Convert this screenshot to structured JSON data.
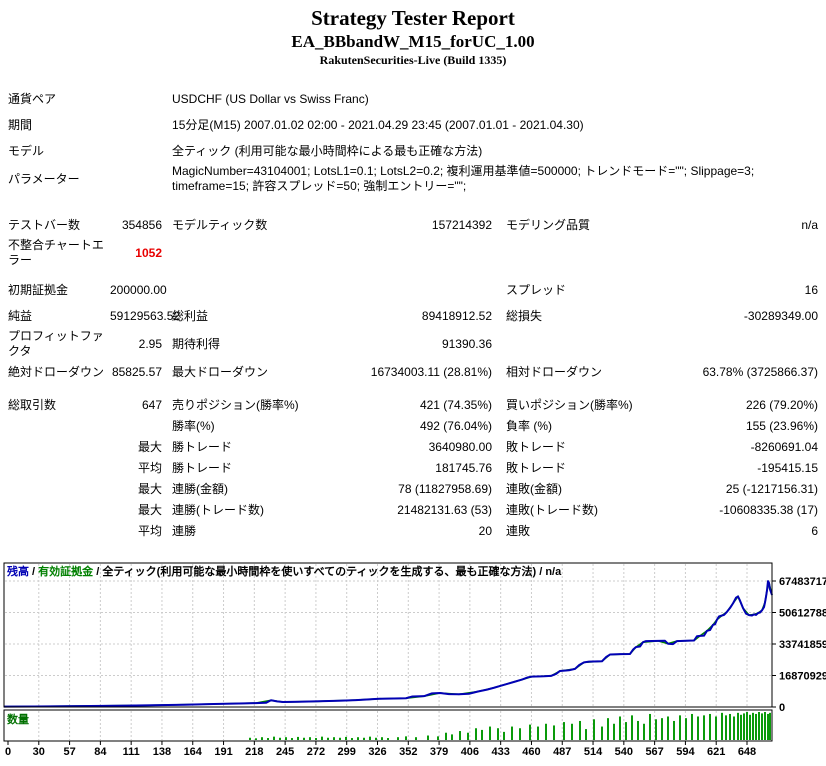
{
  "header": {
    "title": "Strategy Tester Report",
    "ea_name": "EA_BBbandW_M15_forUC_1.00",
    "broker": "RakutenSecurities-Live (Build 1335)"
  },
  "colors": {
    "balance": "#0101b4",
    "equity": "#008000",
    "bars": "#0a9a0a",
    "lots_label": "#007000",
    "grid": "#cccccc",
    "border": "#000000",
    "error": "#e80000"
  },
  "table": {
    "info_rows": [
      {
        "label": "通貨ペア",
        "value": "USDCHF (US Dollar vs Swiss Franc)"
      },
      {
        "label": "期間",
        "value": "15分足(M15) 2007.01.02 02:00 - 2021.04.29 23:45 (2007.01.01 - 2021.04.30)"
      },
      {
        "label": "モデル",
        "value": "全ティック (利用可能な最小時間枠による最も正確な方法)"
      },
      {
        "label": "パラメーター",
        "value": "MagicNumber=43104001; LotsL1=0.1; LotsL2=0.2; 複利運用基準値=500000; トレンドモード=\"\"; Slippage=3; timeframe=15; 許容スプレッド=50; 強制エントリー=\"\";"
      }
    ],
    "bars_rows": [
      {
        "l1": "テストバー数",
        "v1": "354856",
        "l2": "モデルティック数",
        "v2": "157214392",
        "l3": "モデリング品質",
        "v3": "n/a"
      },
      {
        "l1": "不整合チャートエラー",
        "v1": "1052",
        "v1_error": true,
        "l2": "",
        "v2": "",
        "l3": "",
        "v3": ""
      }
    ],
    "money_rows": [
      {
        "l1": "初期証拠金",
        "v1": "200000.00",
        "l2": "",
        "v2": "",
        "l3": "スプレッド",
        "v3": "16"
      },
      {
        "l1": "純益",
        "v1": "59129563.52",
        "l2": "総利益",
        "v2": "89418912.52",
        "l3": "総損失",
        "v3": "-30289349.00"
      },
      {
        "l1": "プロフィットファクタ",
        "v1": "2.95",
        "l2": "期待利得",
        "v2": "91390.36",
        "l3": "",
        "v3": ""
      },
      {
        "l1": "絶対ドローダウン",
        "v1": "85825.57",
        "l2": "最大ドローダウン",
        "v2": "16734003.11 (28.81%)",
        "l3": "相対ドローダウン",
        "v3": "63.78% (3725866.37)"
      }
    ],
    "trade_rows": [
      {
        "l1": "総取引数",
        "v1": "647",
        "l2": "売りポジション(勝率%)",
        "v2": "421 (74.35%)",
        "l3": "買いポジション(勝率%)",
        "v3": "226 (79.20%)"
      },
      {
        "l1": "",
        "v1": "",
        "l2": "勝率(%)",
        "v2": "492 (76.04%)",
        "l3": "負率 (%)",
        "v3": "155 (23.96%)"
      },
      {
        "l1": "",
        "v1": "最大",
        "l2": "勝トレード",
        "v2": "3640980.00",
        "l3": "敗トレード",
        "v3": "-8260691.04"
      },
      {
        "l1": "",
        "v1": "平均",
        "l2": "勝トレード",
        "v2": "181745.76",
        "l3": "敗トレード",
        "v3": "-195415.15"
      },
      {
        "l1": "",
        "v1": "最大",
        "l2": "連勝(金額)",
        "v2": "78 (11827958.69)",
        "l3": "連敗(金額)",
        "v3": "25 (-1217156.31)"
      },
      {
        "l1": "",
        "v1": "最大",
        "l2": "連勝(トレード数)",
        "v2": "21482131.63 (53)",
        "l3": "連敗(トレード数)",
        "v3": "-10608335.38 (17)"
      },
      {
        "l1": "",
        "v1": "平均",
        "l2": "連勝",
        "v2": "20",
        "l3": "連敗",
        "v3": "6"
      }
    ]
  },
  "chart_data": {
    "type": "line",
    "legend": {
      "balance_label": "残高",
      "equity_label": "有効証拠金",
      "model_label": "全ティック(利用可能な最小時間枠を使いすべてのティックを生成する、最も正確な方法)",
      "na_label": "n/a",
      "separator": " / "
    },
    "ylim": [
      0,
      67483717
    ],
    "y_ticks": [
      67483717,
      50612788,
      33741859,
      16870929,
      0
    ],
    "x_ticks": [
      0,
      30,
      57,
      84,
      111,
      138,
      164,
      191,
      218,
      245,
      272,
      299,
      326,
      352,
      379,
      406,
      433,
      460,
      487,
      514,
      540,
      567,
      594,
      621,
      648
    ],
    "xlabel": "",
    "ylabel": "",
    "grid": true,
    "balance_series": {
      "name": "残高",
      "points": [
        [
          0,
          200000
        ],
        [
          30,
          300000
        ],
        [
          60,
          420000
        ],
        [
          100,
          600000
        ],
        [
          140,
          850000
        ],
        [
          180,
          1200000
        ],
        [
          210,
          1600000
        ],
        [
          235,
          1900000
        ],
        [
          252,
          2100000
        ],
        [
          262,
          2250000
        ],
        [
          267,
          3600000
        ],
        [
          273,
          3000000
        ],
        [
          279,
          2650000
        ],
        [
          295,
          2800000
        ],
        [
          315,
          3050000
        ],
        [
          335,
          3350000
        ],
        [
          352,
          3700000
        ],
        [
          365,
          4100000
        ],
        [
          375,
          4400000
        ],
        [
          390,
          4550000
        ],
        [
          402,
          4700000
        ],
        [
          408,
          5600000
        ],
        [
          420,
          5800000
        ],
        [
          428,
          7300000
        ],
        [
          436,
          7500000
        ],
        [
          445,
          6900000
        ],
        [
          455,
          6800000
        ],
        [
          465,
          7100000
        ],
        [
          474,
          8300000
        ],
        [
          483,
          9300000
        ],
        [
          490,
          10300000
        ],
        [
          497,
          11400000
        ],
        [
          504,
          12500000
        ],
        [
          511,
          13600000
        ],
        [
          518,
          14700000
        ],
        [
          524,
          15900000
        ],
        [
          528,
          16300000
        ],
        [
          540,
          16450000
        ],
        [
          547,
          16650000
        ],
        [
          552,
          17700000
        ],
        [
          556,
          19300000
        ],
        [
          565,
          19700000
        ],
        [
          571,
          20400000
        ],
        [
          575,
          22400000
        ],
        [
          580,
          23900000
        ],
        [
          585,
          24300000
        ],
        [
          598,
          24500000
        ],
        [
          602,
          26700000
        ],
        [
          606,
          28100000
        ],
        [
          616,
          28300000
        ],
        [
          626,
          28400000
        ],
        [
          629,
          30700000
        ],
        [
          632,
          32100000
        ],
        [
          636,
          32400000
        ],
        [
          639,
          34700000
        ],
        [
          642,
          35300000
        ],
        [
          654,
          35400000
        ],
        [
          661,
          35450000
        ],
        [
          664,
          33900000
        ],
        [
          669,
          33700000
        ],
        [
          673,
          35300000
        ],
        [
          682,
          35450000
        ],
        [
          690,
          35600000
        ],
        [
          693,
          37900000
        ],
        [
          696,
          38100000
        ],
        [
          700,
          38200000
        ],
        [
          703,
          40800000
        ],
        [
          706,
          41200000
        ],
        [
          709,
          44000000
        ],
        [
          711,
          44300000
        ],
        [
          713,
          46800000
        ],
        [
          715,
          48500000
        ],
        [
          718,
          49000000
        ],
        [
          720,
          49300000
        ],
        [
          723,
          51000000
        ],
        [
          726,
          53000000
        ],
        [
          729,
          55500000
        ],
        [
          732,
          58500000
        ],
        [
          734,
          59200000
        ],
        [
          736,
          57000000
        ],
        [
          739,
          53000000
        ],
        [
          742,
          50000000
        ],
        [
          745,
          49200000
        ],
        [
          748,
          49000000
        ],
        [
          750,
          49600000
        ],
        [
          752,
          49300000
        ],
        [
          754,
          50300000
        ],
        [
          756,
          50600000
        ],
        [
          758,
          51800000
        ],
        [
          760,
          53500000
        ],
        [
          761,
          56000000
        ],
        [
          762,
          59000000
        ],
        [
          763,
          62500000
        ],
        [
          764,
          67400000
        ],
        [
          765,
          66500000
        ],
        [
          766,
          63000000
        ],
        [
          768,
          60000000
        ]
      ]
    },
    "equity_series": {
      "name": "有効証拠金"
    },
    "lots_histogram": {
      "name": "数量",
      "type": "bar",
      "bars": [
        [
          246,
          0.08
        ],
        [
          252,
          0.06
        ],
        [
          258,
          0.1
        ],
        [
          264,
          0.07
        ],
        [
          270,
          0.12
        ],
        [
          276,
          0.08
        ],
        [
          282,
          0.1
        ],
        [
          288,
          0.07
        ],
        [
          294,
          0.11
        ],
        [
          300,
          0.08
        ],
        [
          306,
          0.1
        ],
        [
          312,
          0.07
        ],
        [
          318,
          0.12
        ],
        [
          324,
          0.08
        ],
        [
          330,
          0.1
        ],
        [
          336,
          0.08
        ],
        [
          342,
          0.11
        ],
        [
          348,
          0.07
        ],
        [
          354,
          0.1
        ],
        [
          360,
          0.08
        ],
        [
          366,
          0.12
        ],
        [
          372,
          0.08
        ],
        [
          378,
          0.1
        ],
        [
          384,
          0.07
        ],
        [
          394,
          0.1
        ],
        [
          402,
          0.13
        ],
        [
          412,
          0.1
        ],
        [
          424,
          0.16
        ],
        [
          434,
          0.13
        ],
        [
          442,
          0.26
        ],
        [
          448,
          0.2
        ],
        [
          456,
          0.32
        ],
        [
          464,
          0.26
        ],
        [
          472,
          0.42
        ],
        [
          478,
          0.36
        ],
        [
          486,
          0.48
        ],
        [
          494,
          0.42
        ],
        [
          500,
          0.29
        ],
        [
          508,
          0.48
        ],
        [
          516,
          0.42
        ],
        [
          526,
          0.55
        ],
        [
          534,
          0.48
        ],
        [
          542,
          0.58
        ],
        [
          550,
          0.52
        ],
        [
          560,
          0.64
        ],
        [
          568,
          0.58
        ],
        [
          576,
          0.68
        ],
        [
          582,
          0.39
        ],
        [
          590,
          0.74
        ],
        [
          598,
          0.48
        ],
        [
          604,
          0.78
        ],
        [
          610,
          0.58
        ],
        [
          616,
          0.84
        ],
        [
          622,
          0.64
        ],
        [
          628,
          0.88
        ],
        [
          634,
          0.68
        ],
        [
          640,
          0.58
        ],
        [
          646,
          0.93
        ],
        [
          652,
          0.74
        ],
        [
          658,
          0.78
        ],
        [
          664,
          0.84
        ],
        [
          670,
          0.68
        ],
        [
          676,
          0.88
        ],
        [
          682,
          0.78
        ],
        [
          688,
          0.93
        ],
        [
          694,
          0.84
        ],
        [
          700,
          0.88
        ],
        [
          706,
          0.93
        ],
        [
          712,
          0.84
        ],
        [
          718,
          0.97
        ],
        [
          722,
          0.88
        ],
        [
          726,
          0.93
        ],
        [
          730,
          0.84
        ],
        [
          734,
          0.97
        ],
        [
          737,
          0.9
        ],
        [
          740,
          0.95
        ],
        [
          743,
          1
        ],
        [
          746,
          0.9
        ],
        [
          749,
          0.97
        ],
        [
          752,
          0.93
        ],
        [
          755,
          1
        ],
        [
          758,
          0.95
        ],
        [
          761,
          1
        ],
        [
          764,
          0.93
        ],
        [
          766,
          0.97
        ]
      ]
    },
    "lots_label": "数量"
  }
}
